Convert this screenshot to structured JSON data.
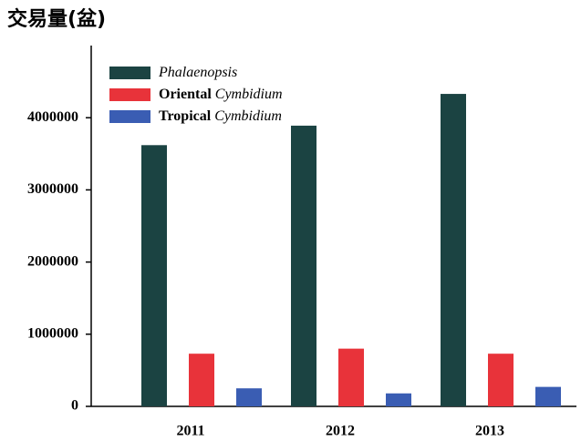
{
  "chart_data": {
    "type": "bar",
    "title": "交易量(盆)",
    "categories": [
      "2011",
      "2012",
      "2013"
    ],
    "series": [
      {
        "name": "Phalaenopsis",
        "color": "#1b4342",
        "values": [
          3620000,
          3890000,
          4330000
        ]
      },
      {
        "name": "Oriental Cymbidium",
        "color": "#e8333a",
        "values": [
          730000,
          800000,
          730000
        ]
      },
      {
        "name": "Tropical Cymbidium",
        "color": "#3a5db3",
        "values": [
          250000,
          180000,
          270000
        ]
      }
    ],
    "ylim": [
      0,
      5000000
    ],
    "yticks": [
      0,
      1000000,
      2000000,
      3000000,
      4000000
    ],
    "grid": false,
    "legend": "upper left"
  }
}
